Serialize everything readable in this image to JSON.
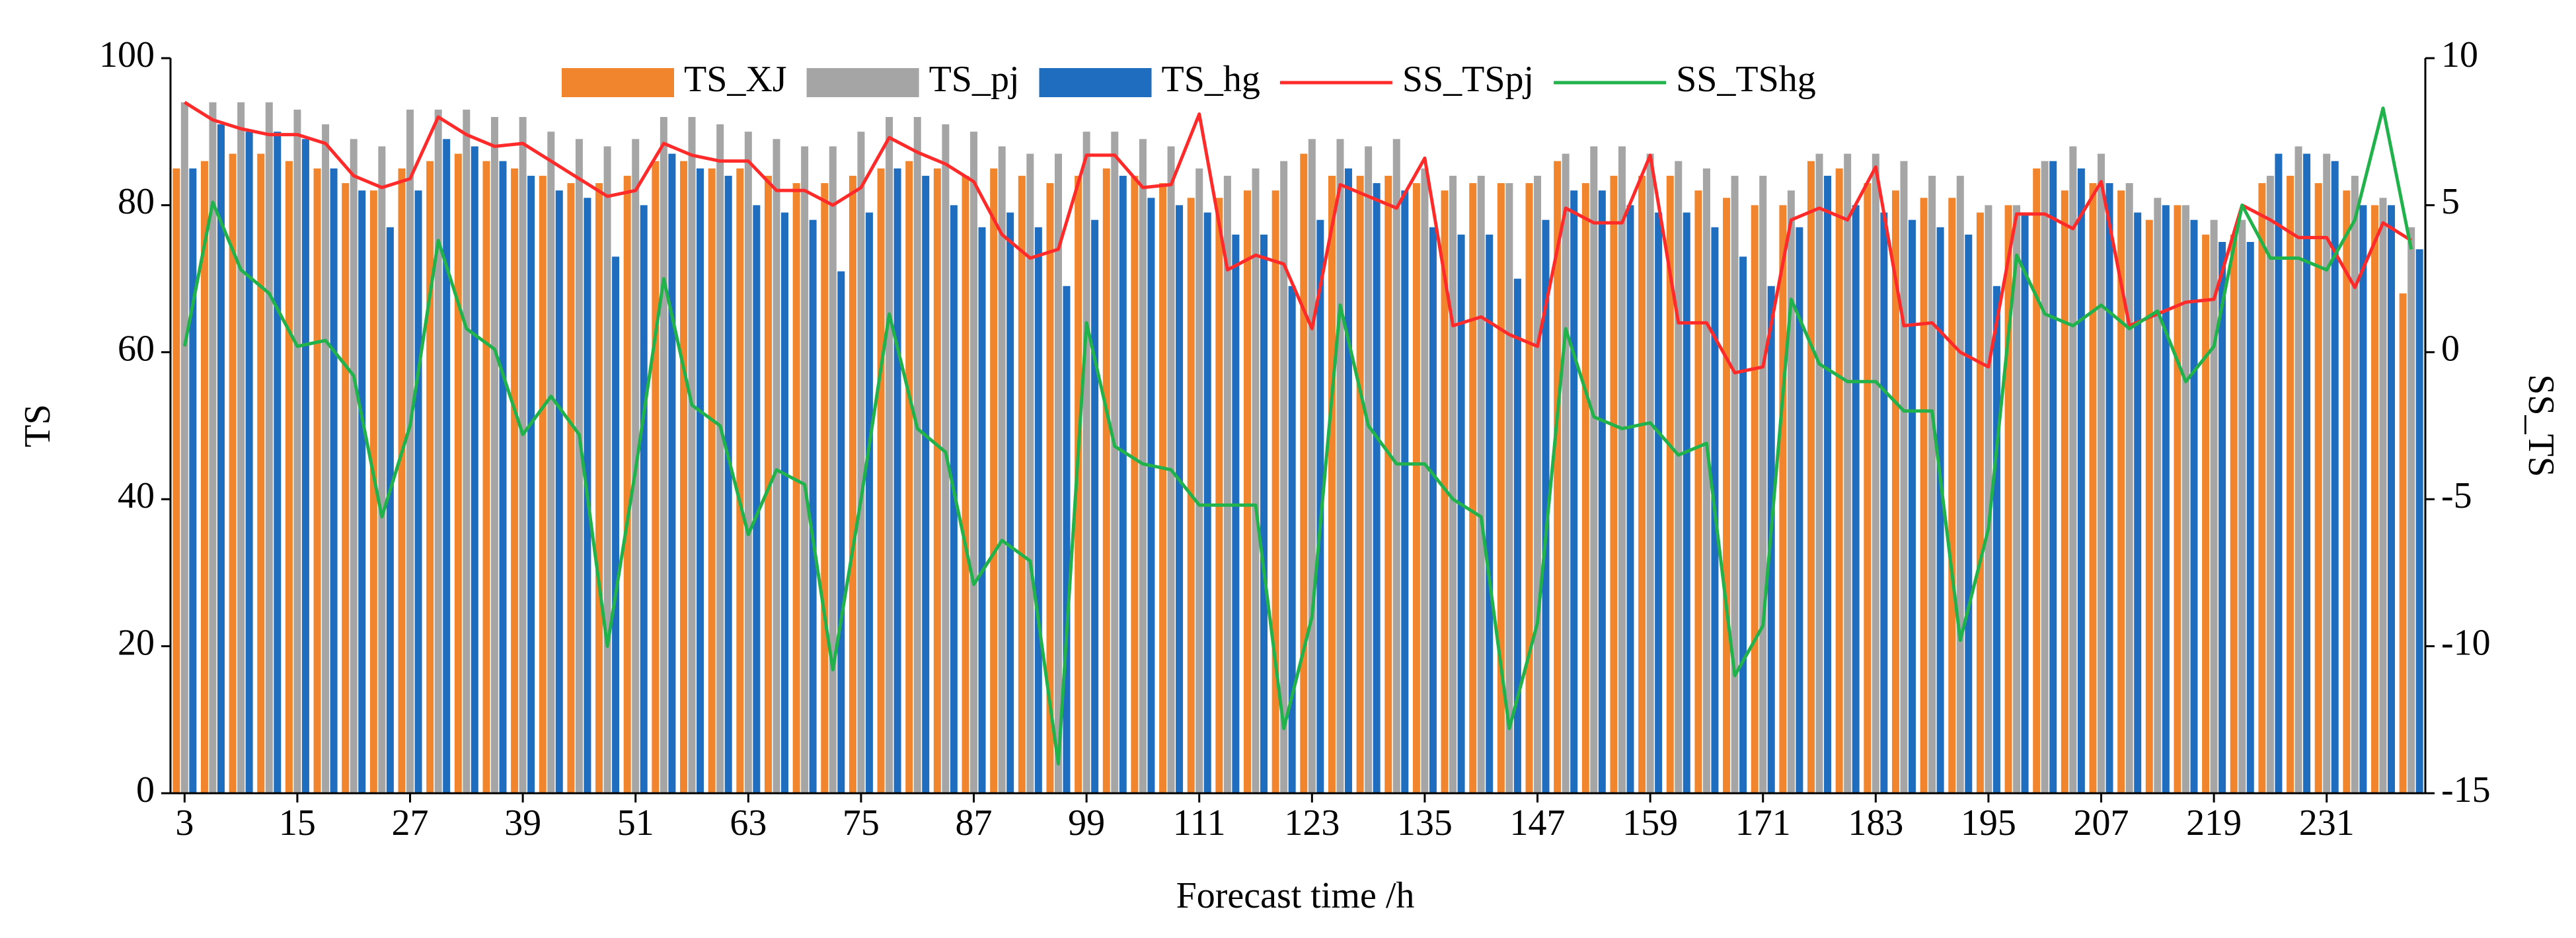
{
  "chart_data": {
    "type": "bar_line",
    "x_label": "Forecast time /h",
    "y_label": "TS",
    "y2_label": "SS_TS",
    "x": [
      3,
      6,
      9,
      12,
      15,
      18,
      21,
      24,
      27,
      30,
      33,
      36,
      39,
      42,
      45,
      48,
      51,
      54,
      57,
      60,
      63,
      66,
      69,
      72,
      75,
      78,
      81,
      84,
      87,
      90,
      93,
      96,
      99,
      102,
      105,
      108,
      111,
      114,
      117,
      120,
      123,
      126,
      129,
      132,
      135,
      138,
      141,
      144,
      147,
      150,
      153,
      156,
      159,
      162,
      165,
      168,
      171,
      174,
      177,
      180,
      183,
      186,
      189,
      192,
      195,
      198,
      201,
      204,
      207,
      210,
      213,
      216,
      219,
      222,
      225,
      228,
      231,
      234,
      237,
      240
    ],
    "xlim": [
      1.5,
      241.5
    ],
    "xticks": [
      3,
      15,
      27,
      39,
      51,
      63,
      75,
      87,
      99,
      111,
      123,
      135,
      147,
      159,
      171,
      183,
      195,
      207,
      219,
      231
    ],
    "ylim": [
      0,
      100
    ],
    "yticks": [
      0,
      20,
      40,
      60,
      80,
      100
    ],
    "y2lim": [
      -15,
      10
    ],
    "y2ticks": [
      -15,
      -10,
      -5,
      0,
      5,
      10
    ],
    "legend": "top",
    "series": [
      {
        "name": "TS_XJ",
        "kind": "bar",
        "color": "#f0852d",
        "values": [
          85,
          86,
          87,
          87,
          86,
          85,
          83,
          82,
          85,
          86,
          87,
          86,
          85,
          84,
          83,
          83,
          84,
          86,
          86,
          85,
          85,
          84,
          83,
          83,
          84,
          85,
          86,
          85,
          84,
          85,
          84,
          83,
          84,
          85,
          84,
          83,
          81,
          81,
          82,
          82,
          87,
          84,
          84,
          84,
          83,
          82,
          83,
          83,
          83,
          86,
          83,
          84,
          84,
          84,
          82,
          81,
          80,
          80,
          86,
          85,
          83,
          82,
          81,
          81,
          79,
          80,
          85,
          82,
          83,
          82,
          78,
          80,
          76,
          76,
          83,
          84,
          83,
          82,
          80,
          68
        ]
      },
      {
        "name": "TS_pj",
        "kind": "bar",
        "color": "#a5a5a5",
        "values": [
          94,
          94,
          94,
          94,
          93,
          91,
          89,
          88,
          93,
          93,
          93,
          92,
          92,
          90,
          89,
          88,
          89,
          92,
          92,
          91,
          90,
          89,
          88,
          88,
          90,
          92,
          92,
          91,
          90,
          88,
          87,
          87,
          90,
          90,
          89,
          88,
          85,
          84,
          85,
          86,
          89,
          89,
          88,
          89,
          85,
          84,
          84,
          83,
          84,
          87,
          88,
          88,
          87,
          86,
          85,
          84,
          84,
          82,
          87,
          87,
          87,
          86,
          84,
          84,
          80,
          80,
          86,
          88,
          87,
          83,
          81,
          80,
          78,
          78,
          84,
          88,
          87,
          84,
          81,
          77
        ]
      },
      {
        "name": "TS_hg",
        "kind": "bar",
        "color": "#1f6dbf",
        "values": [
          85,
          91,
          90,
          90,
          89,
          85,
          82,
          77,
          82,
          89,
          88,
          86,
          84,
          82,
          81,
          73,
          80,
          87,
          85,
          84,
          80,
          79,
          78,
          71,
          79,
          85,
          84,
          80,
          77,
          79,
          77,
          69,
          78,
          84,
          81,
          80,
          79,
          76,
          76,
          69,
          78,
          85,
          83,
          82,
          77,
          76,
          76,
          70,
          78,
          82,
          82,
          80,
          79,
          79,
          77,
          73,
          69,
          77,
          84,
          80,
          79,
          78,
          77,
          76,
          69,
          79,
          86,
          85,
          83,
          79,
          80,
          78,
          75,
          75,
          87,
          87,
          86,
          80,
          80,
          74
        ]
      },
      {
        "name": "SS_TSpj",
        "kind": "line",
        "axis": "y2",
        "color": "#ff2b2b",
        "values": [
          8.5,
          7.9,
          7.6,
          7.4,
          7.4,
          7.1,
          6.0,
          5.6,
          5.9,
          8.0,
          7.4,
          7.0,
          7.1,
          6.5,
          5.9,
          5.3,
          5.5,
          7.1,
          6.7,
          6.5,
          6.5,
          5.5,
          5.5,
          5.0,
          5.6,
          7.3,
          6.8,
          6.4,
          5.8,
          4.0,
          3.2,
          3.5,
          6.7,
          6.7,
          5.6,
          5.7,
          8.1,
          2.8,
          3.3,
          3.0,
          0.8,
          5.7,
          5.3,
          4.9,
          6.6,
          0.9,
          1.2,
          0.6,
          0.2,
          4.9,
          4.4,
          4.4,
          6.7,
          1.0,
          1.0,
          -0.7,
          -0.5,
          4.5,
          4.9,
          4.5,
          6.3,
          0.9,
          1.0,
          0,
          -0.5,
          4.7,
          4.7,
          4.2,
          5.8,
          0.9,
          1.3,
          1.7,
          1.8,
          5.0,
          4.5,
          3.9,
          3.9,
          2.2,
          4.4,
          3.8
        ]
      },
      {
        "name": "SS_TShg",
        "kind": "line",
        "axis": "y2",
        "color": "#22b24c",
        "values": [
          0.2,
          5.1,
          2.8,
          2.0,
          0.2,
          0.4,
          -0.8,
          -5.6,
          -2.5,
          3.8,
          0.8,
          0.1,
          -2.8,
          -1.5,
          -2.8,
          -10,
          -4,
          2.5,
          -1.8,
          -2.5,
          -6.2,
          -4,
          -4.5,
          -10.8,
          -5,
          1.3,
          -2.6,
          -3.4,
          -7.9,
          -6.4,
          -7.1,
          -14,
          1.0,
          -3.2,
          -3.8,
          -4,
          -5.2,
          -5.2,
          -5.2,
          -12.8,
          -9,
          1.6,
          -2.5,
          -3.8,
          -3.8,
          -5,
          -5.6,
          -12.8,
          -9.2,
          0.8,
          -2.2,
          -2.6,
          -2.4,
          -3.5,
          -3.1,
          -11,
          -9.3,
          1.8,
          -0.4,
          -1,
          -1,
          -2,
          -2,
          -9.8,
          -6,
          3.3,
          1.3,
          0.9,
          1.6,
          0.8,
          1.4,
          -1,
          0.2,
          5,
          3.2,
          3.2,
          2.8,
          4.5,
          8.3,
          3.5
        ]
      }
    ]
  }
}
